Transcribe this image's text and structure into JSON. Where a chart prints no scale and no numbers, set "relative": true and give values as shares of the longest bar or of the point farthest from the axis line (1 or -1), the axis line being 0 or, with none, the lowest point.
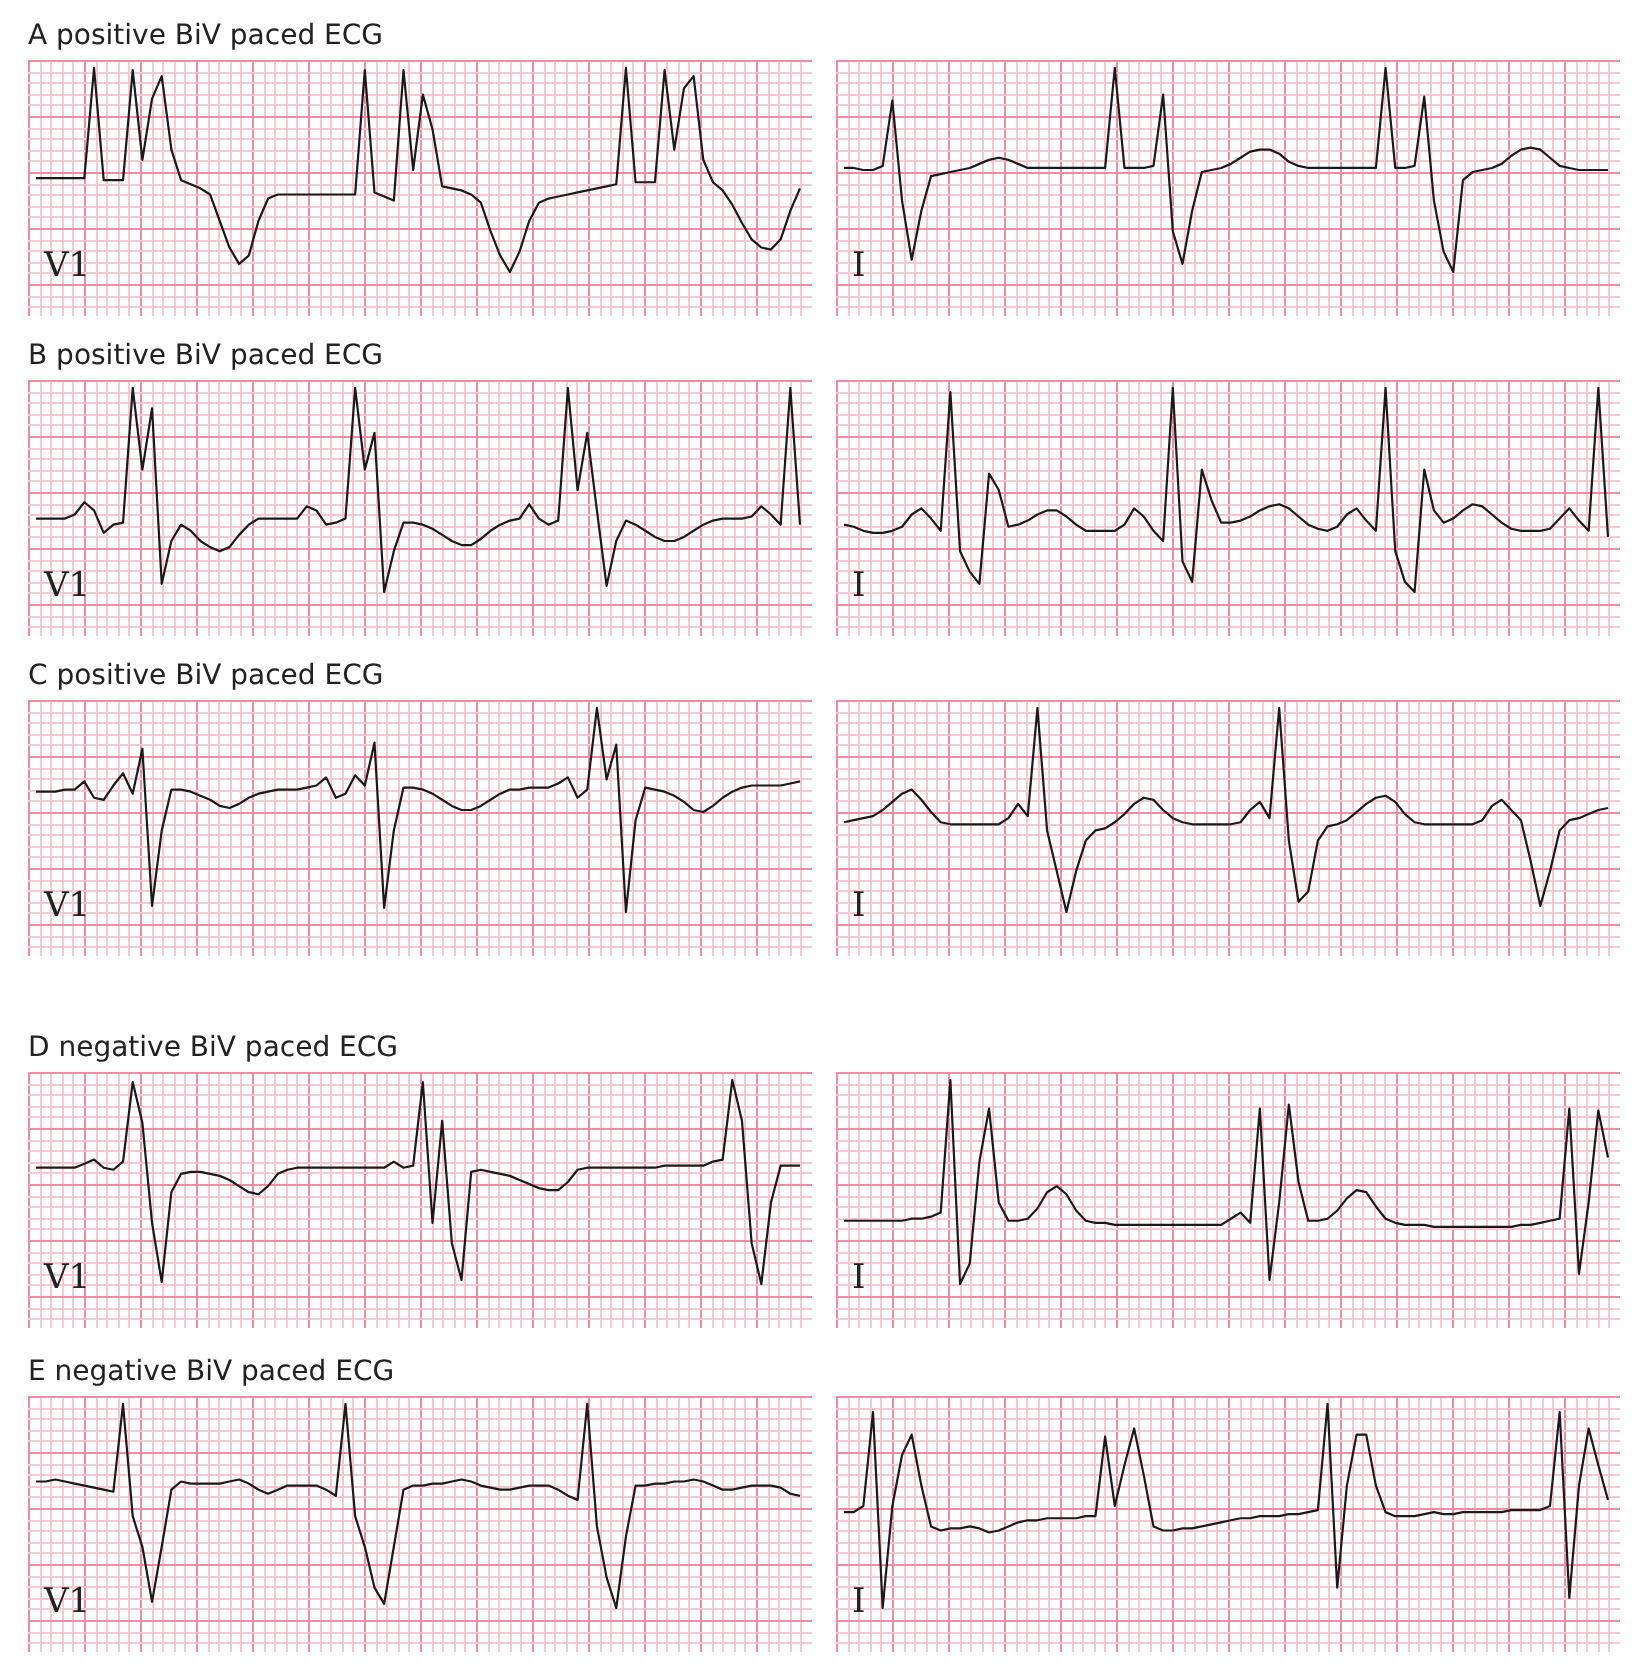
{
  "chart_data": [
    {
      "type": "line",
      "title": "A positive BiV paced ECG",
      "relative": true,
      "grid": true,
      "tick_labels": false,
      "annotations": [
        "V1"
      ],
      "categories": [
        null,
        null,
        null,
        null,
        null,
        null,
        null,
        null,
        null,
        null,
        null,
        null,
        null,
        null,
        null,
        null,
        null,
        null,
        null,
        null,
        null,
        null,
        null,
        null,
        null,
        null,
        null,
        null,
        null,
        null,
        null,
        null,
        null,
        null,
        null,
        null,
        null,
        null,
        null,
        null,
        null,
        null,
        null,
        null,
        null,
        null,
        null,
        null,
        null,
        null,
        null,
        null,
        null,
        null,
        null,
        null,
        null,
        null,
        null,
        null,
        null,
        null,
        null,
        null,
        null,
        null,
        null,
        null,
        null,
        null,
        null,
        null,
        null,
        null,
        null,
        null,
        null,
        null,
        null,
        null
      ],
      "series": [
        {
          "color": "#1a1a1a",
          "values": [
            0.46,
            0.46,
            0.46,
            0.46,
            0.46,
            0.46,
            1,
            0.45,
            0.45,
            0.45,
            0.99,
            0.55,
            0.85,
            0.96,
            0.6,
            0.45,
            0.43,
            0.41,
            0.38,
            0.25,
            0.12,
            0.04,
            0.08,
            0.25,
            0.36,
            0.38,
            0.38,
            0.38,
            0.38,
            0.38,
            0.38,
            0.38,
            0.38,
            0.38,
            0.99,
            0.39,
            0.37,
            0.35,
            0.99,
            0.5,
            0.87,
            0.7,
            0.42,
            0.41,
            0.4,
            0.38,
            0.34,
            0.2,
            0.08,
            0,
            0.1,
            0.25,
            0.34,
            0.36,
            0.37,
            0.38,
            0.39,
            0.4,
            0.41,
            0.42,
            0.43,
            1,
            0.44,
            0.44,
            0.44,
            0.99,
            0.6,
            0.9,
            0.96,
            0.55,
            0.44,
            0.4,
            0.33,
            0.24,
            0.16,
            0.12,
            0.11,
            0.16,
            0.3,
            0.41
          ]
        }
      ]
    },
    {
      "type": "line",
      "relative": true,
      "grid": true,
      "tick_labels": false,
      "annotations": [
        "I"
      ],
      "categories": [
        null,
        null,
        null,
        null,
        null,
        null,
        null,
        null,
        null,
        null,
        null,
        null,
        null,
        null,
        null,
        null,
        null,
        null,
        null,
        null,
        null,
        null,
        null,
        null,
        null,
        null,
        null,
        null,
        null,
        null,
        null,
        null,
        null,
        null,
        null,
        null,
        null,
        null,
        null,
        null,
        null,
        null,
        null,
        null,
        null,
        null,
        null,
        null,
        null,
        null,
        null,
        null,
        null,
        null,
        null,
        null,
        null,
        null,
        null,
        null,
        null,
        null,
        null,
        null,
        null,
        null,
        null,
        null,
        null,
        null,
        null,
        null,
        null,
        null,
        null,
        null,
        null,
        null,
        null,
        null
      ],
      "series": [
        {
          "color": "#1a1a1a",
          "values": [
            0.51,
            0.51,
            0.5,
            0.5,
            0.52,
            0.84,
            0.35,
            0.06,
            0.3,
            0.47,
            0.48,
            0.49,
            0.5,
            0.51,
            0.53,
            0.55,
            0.56,
            0.55,
            0.53,
            0.51,
            0.51,
            0.51,
            0.51,
            0.51,
            0.51,
            0.51,
            0.51,
            0.51,
            1,
            0.51,
            0.51,
            0.51,
            0.52,
            0.87,
            0.2,
            0.04,
            0.3,
            0.49,
            0.5,
            0.51,
            0.53,
            0.56,
            0.59,
            0.6,
            0.6,
            0.58,
            0.54,
            0.52,
            0.51,
            0.51,
            0.51,
            0.51,
            0.51,
            0.51,
            0.51,
            0.51,
            1,
            0.51,
            0.51,
            0.52,
            0.86,
            0.35,
            0.1,
            0,
            0.45,
            0.49,
            0.5,
            0.51,
            0.53,
            0.57,
            0.6,
            0.61,
            0.6,
            0.56,
            0.52,
            0.51,
            0.5,
            0.5,
            0.5,
            0.5
          ]
        }
      ]
    },
    {
      "type": "line",
      "title": "B positive BiV paced ECG",
      "relative": true,
      "grid": true,
      "tick_labels": false,
      "annotations": [
        "V1"
      ],
      "categories": [
        null,
        null,
        null,
        null,
        null,
        null,
        null,
        null,
        null,
        null,
        null,
        null,
        null,
        null,
        null,
        null,
        null,
        null,
        null,
        null,
        null,
        null,
        null,
        null,
        null,
        null,
        null,
        null,
        null,
        null,
        null,
        null,
        null,
        null,
        null,
        null,
        null,
        null,
        null,
        null,
        null,
        null,
        null,
        null,
        null,
        null,
        null,
        null,
        null,
        null,
        null,
        null,
        null,
        null,
        null,
        null,
        null,
        null,
        null,
        null,
        null,
        null,
        null,
        null,
        null,
        null,
        null,
        null,
        null,
        null,
        null,
        null,
        null,
        null,
        null,
        null,
        null,
        null,
        null,
        null
      ],
      "series": [
        {
          "color": "#1a1a1a",
          "values": [
            0.36,
            0.36,
            0.36,
            0.36,
            0.38,
            0.44,
            0.4,
            0.29,
            0.33,
            0.34,
            1,
            0.6,
            0.9,
            0.04,
            0.25,
            0.33,
            0.3,
            0.25,
            0.22,
            0.2,
            0.22,
            0.28,
            0.33,
            0.36,
            0.36,
            0.36,
            0.36,
            0.36,
            0.42,
            0.4,
            0.33,
            0.34,
            0.36,
            1,
            0.6,
            0.78,
            0,
            0.2,
            0.34,
            0.34,
            0.33,
            0.31,
            0.28,
            0.25,
            0.23,
            0.23,
            0.26,
            0.3,
            0.33,
            0.35,
            0.36,
            0.43,
            0.36,
            0.33,
            0.35,
            1,
            0.5,
            0.78,
            0.4,
            0.03,
            0.25,
            0.35,
            0.33,
            0.3,
            0.27,
            0.25,
            0.25,
            0.27,
            0.3,
            0.33,
            0.35,
            0.36,
            0.36,
            0.36,
            0.37,
            0.42,
            0.38,
            0.33,
            1,
            0.33
          ]
        }
      ]
    },
    {
      "type": "line",
      "relative": true,
      "grid": true,
      "tick_labels": false,
      "annotations": [
        "I"
      ],
      "categories": [
        null,
        null,
        null,
        null,
        null,
        null,
        null,
        null,
        null,
        null,
        null,
        null,
        null,
        null,
        null,
        null,
        null,
        null,
        null,
        null,
        null,
        null,
        null,
        null,
        null,
        null,
        null,
        null,
        null,
        null,
        null,
        null,
        null,
        null,
        null,
        null,
        null,
        null,
        null,
        null,
        null,
        null,
        null,
        null,
        null,
        null,
        null,
        null,
        null,
        null,
        null,
        null,
        null,
        null,
        null,
        null,
        null,
        null,
        null,
        null,
        null,
        null,
        null,
        null,
        null,
        null,
        null,
        null,
        null,
        null,
        null,
        null,
        null,
        null,
        null,
        null,
        null,
        null,
        null,
        null
      ],
      "series": [
        {
          "color": "#1a1a1a",
          "values": [
            0.33,
            0.32,
            0.3,
            0.29,
            0.29,
            0.3,
            0.32,
            0.38,
            0.41,
            0.36,
            0.3,
            0.98,
            0.2,
            0.1,
            0.04,
            0.58,
            0.5,
            0.32,
            0.33,
            0.35,
            0.38,
            0.4,
            0.4,
            0.37,
            0.33,
            0.3,
            0.3,
            0.3,
            0.3,
            0.33,
            0.41,
            0.37,
            0.3,
            0.25,
            1,
            0.15,
            0.05,
            0.6,
            0.45,
            0.34,
            0.34,
            0.35,
            0.37,
            0.4,
            0.42,
            0.43,
            0.41,
            0.37,
            0.33,
            0.31,
            0.3,
            0.32,
            0.38,
            0.41,
            0.35,
            0.3,
            1,
            0.2,
            0.05,
            0,
            0.6,
            0.4,
            0.34,
            0.36,
            0.4,
            0.43,
            0.42,
            0.38,
            0.34,
            0.31,
            0.3,
            0.3,
            0.3,
            0.31,
            0.36,
            0.41,
            0.35,
            0.3,
            1,
            0.27
          ]
        }
      ]
    },
    {
      "type": "line",
      "title": "C positive BiV paced ECG",
      "relative": true,
      "grid": true,
      "tick_labels": false,
      "annotations": [
        "V1"
      ],
      "categories": [
        null,
        null,
        null,
        null,
        null,
        null,
        null,
        null,
        null,
        null,
        null,
        null,
        null,
        null,
        null,
        null,
        null,
        null,
        null,
        null,
        null,
        null,
        null,
        null,
        null,
        null,
        null,
        null,
        null,
        null,
        null,
        null,
        null,
        null,
        null,
        null,
        null,
        null,
        null,
        null,
        null,
        null,
        null,
        null,
        null,
        null,
        null,
        null,
        null,
        null,
        null,
        null,
        null,
        null,
        null,
        null,
        null,
        null,
        null,
        null,
        null,
        null,
        null,
        null,
        null,
        null,
        null,
        null,
        null,
        null,
        null,
        null,
        null,
        null,
        null,
        null,
        null,
        null,
        null,
        null
      ],
      "series": [
        {
          "color": "#1a1a1a",
          "values": [
            0.59,
            0.59,
            0.59,
            0.6,
            0.6,
            0.64,
            0.56,
            0.55,
            0.62,
            0.68,
            0.58,
            0.8,
            0.03,
            0.4,
            0.6,
            0.6,
            0.59,
            0.57,
            0.55,
            0.52,
            0.51,
            0.53,
            0.56,
            0.58,
            0.59,
            0.6,
            0.6,
            0.6,
            0.61,
            0.62,
            0.66,
            0.56,
            0.58,
            0.67,
            0.62,
            0.83,
            0.02,
            0.4,
            0.61,
            0.61,
            0.6,
            0.58,
            0.55,
            0.52,
            0.5,
            0.5,
            0.52,
            0.55,
            0.58,
            0.6,
            0.6,
            0.61,
            0.61,
            0.61,
            0.63,
            0.66,
            0.56,
            0.6,
            1,
            0.65,
            0.82,
            0,
            0.45,
            0.61,
            0.6,
            0.59,
            0.57,
            0.54,
            0.5,
            0.49,
            0.52,
            0.56,
            0.59,
            0.61,
            0.62,
            0.62,
            0.62,
            0.62,
            0.63,
            0.64
          ]
        }
      ]
    },
    {
      "type": "line",
      "relative": true,
      "grid": true,
      "tick_labels": false,
      "annotations": [
        "I"
      ],
      "categories": [
        null,
        null,
        null,
        null,
        null,
        null,
        null,
        null,
        null,
        null,
        null,
        null,
        null,
        null,
        null,
        null,
        null,
        null,
        null,
        null,
        null,
        null,
        null,
        null,
        null,
        null,
        null,
        null,
        null,
        null,
        null,
        null,
        null,
        null,
        null,
        null,
        null,
        null,
        null,
        null,
        null,
        null,
        null,
        null,
        null,
        null,
        null,
        null,
        null,
        null,
        null,
        null,
        null,
        null,
        null,
        null,
        null,
        null,
        null,
        null,
        null,
        null,
        null,
        null,
        null,
        null,
        null,
        null,
        null,
        null,
        null,
        null,
        null,
        null,
        null,
        null,
        null,
        null,
        null,
        null
      ],
      "series": [
        {
          "color": "#1a1a1a",
          "values": [
            0.44,
            0.45,
            0.46,
            0.47,
            0.5,
            0.54,
            0.58,
            0.6,
            0.55,
            0.49,
            0.44,
            0.43,
            0.43,
            0.43,
            0.43,
            0.43,
            0.43,
            0.46,
            0.53,
            0.47,
            1,
            0.4,
            0.2,
            0,
            0.2,
            0.35,
            0.4,
            0.41,
            0.44,
            0.48,
            0.53,
            0.56,
            0.55,
            0.5,
            0.46,
            0.44,
            0.43,
            0.43,
            0.43,
            0.43,
            0.43,
            0.44,
            0.5,
            0.54,
            0.46,
            1,
            0.35,
            0.05,
            0.1,
            0.35,
            0.42,
            0.43,
            0.45,
            0.49,
            0.53,
            0.56,
            0.57,
            0.54,
            0.48,
            0.44,
            0.43,
            0.43,
            0.43,
            0.43,
            0.43,
            0.43,
            0.45,
            0.52,
            0.55,
            0.5,
            0.45,
            0.25,
            0.03,
            0.2,
            0.4,
            0.45,
            0.46,
            0.48,
            0.5,
            0.51
          ]
        }
      ]
    },
    {
      "type": "line",
      "title": "D negative BiV paced ECG",
      "relative": true,
      "grid": true,
      "tick_labels": false,
      "annotations": [
        "V1"
      ],
      "categories": [
        null,
        null,
        null,
        null,
        null,
        null,
        null,
        null,
        null,
        null,
        null,
        null,
        null,
        null,
        null,
        null,
        null,
        null,
        null,
        null,
        null,
        null,
        null,
        null,
        null,
        null,
        null,
        null,
        null,
        null,
        null,
        null,
        null,
        null,
        null,
        null,
        null,
        null,
        null,
        null,
        null,
        null,
        null,
        null,
        null,
        null,
        null,
        null,
        null,
        null,
        null,
        null,
        null,
        null,
        null,
        null,
        null,
        null,
        null,
        null,
        null,
        null,
        null,
        null,
        null,
        null,
        null,
        null,
        null,
        null,
        null,
        null,
        null,
        null,
        null,
        null,
        null,
        null,
        null,
        null
      ],
      "series": [
        {
          "color": "#1a1a1a",
          "values": [
            0.57,
            0.57,
            0.57,
            0.57,
            0.57,
            0.59,
            0.61,
            0.57,
            0.56,
            0.6,
            0.99,
            0.79,
            0.3,
            0.01,
            0.45,
            0.54,
            0.55,
            0.55,
            0.54,
            0.53,
            0.51,
            0.48,
            0.45,
            0.44,
            0.48,
            0.54,
            0.56,
            0.57,
            0.57,
            0.57,
            0.57,
            0.57,
            0.57,
            0.57,
            0.57,
            0.57,
            0.57,
            0.6,
            0.57,
            0.58,
            0.99,
            0.3,
            0.8,
            0.2,
            0.02,
            0.55,
            0.56,
            0.55,
            0.54,
            0.53,
            0.51,
            0.49,
            0.47,
            0.46,
            0.46,
            0.5,
            0.56,
            0.57,
            0.57,
            0.57,
            0.57,
            0.57,
            0.57,
            0.57,
            0.57,
            0.58,
            0.58,
            0.58,
            0.58,
            0.58,
            0.6,
            0.61,
            1,
            0.8,
            0.2,
            0,
            0.4,
            0.58,
            0.58,
            0.58
          ]
        }
      ]
    },
    {
      "type": "line",
      "relative": true,
      "grid": true,
      "tick_labels": false,
      "annotations": [
        "I"
      ],
      "categories": [
        null,
        null,
        null,
        null,
        null,
        null,
        null,
        null,
        null,
        null,
        null,
        null,
        null,
        null,
        null,
        null,
        null,
        null,
        null,
        null,
        null,
        null,
        null,
        null,
        null,
        null,
        null,
        null,
        null,
        null,
        null,
        null,
        null,
        null,
        null,
        null,
        null,
        null,
        null,
        null,
        null,
        null,
        null,
        null,
        null,
        null,
        null,
        null,
        null,
        null,
        null,
        null,
        null,
        null,
        null,
        null,
        null,
        null,
        null,
        null,
        null,
        null,
        null,
        null,
        null,
        null,
        null,
        null,
        null,
        null,
        null,
        null,
        null,
        null,
        null,
        null,
        null,
        null,
        null,
        null
      ],
      "series": [
        {
          "color": "#1a1a1a",
          "values": [
            0.31,
            0.31,
            0.31,
            0.31,
            0.31,
            0.31,
            0.31,
            0.32,
            0.32,
            0.33,
            0.35,
            1,
            0,
            0.1,
            0.6,
            0.86,
            0.4,
            0.31,
            0.31,
            0.32,
            0.37,
            0.45,
            0.48,
            0.44,
            0.36,
            0.31,
            0.3,
            0.3,
            0.29,
            0.29,
            0.29,
            0.29,
            0.29,
            0.29,
            0.29,
            0.29,
            0.29,
            0.29,
            0.29,
            0.29,
            0.32,
            0.35,
            0.3,
            0.86,
            0.02,
            0.4,
            0.88,
            0.5,
            0.31,
            0.31,
            0.32,
            0.36,
            0.42,
            0.46,
            0.45,
            0.38,
            0.32,
            0.3,
            0.29,
            0.29,
            0.29,
            0.28,
            0.28,
            0.28,
            0.28,
            0.28,
            0.28,
            0.28,
            0.28,
            0.28,
            0.29,
            0.29,
            0.3,
            0.31,
            0.32,
            0.86,
            0.05,
            0.4,
            0.85,
            0.62
          ]
        }
      ]
    },
    {
      "type": "line",
      "title": "E negative BiV paced ECG",
      "relative": true,
      "grid": true,
      "tick_labels": false,
      "annotations": [
        "V1"
      ],
      "categories": [
        null,
        null,
        null,
        null,
        null,
        null,
        null,
        null,
        null,
        null,
        null,
        null,
        null,
        null,
        null,
        null,
        null,
        null,
        null,
        null,
        null,
        null,
        null,
        null,
        null,
        null,
        null,
        null,
        null,
        null,
        null,
        null,
        null,
        null,
        null,
        null,
        null,
        null,
        null,
        null,
        null,
        null,
        null,
        null,
        null,
        null,
        null,
        null,
        null,
        null,
        null,
        null,
        null,
        null,
        null,
        null,
        null,
        null,
        null,
        null,
        null,
        null,
        null,
        null,
        null,
        null,
        null,
        null,
        null,
        null,
        null,
        null,
        null,
        null,
        null,
        null,
        null,
        null,
        null,
        null
      ],
      "series": [
        {
          "color": "#1a1a1a",
          "values": [
            0.62,
            0.62,
            0.63,
            0.62,
            0.61,
            0.6,
            0.59,
            0.58,
            0.57,
            1,
            0.45,
            0.3,
            0.03,
            0.3,
            0.58,
            0.62,
            0.61,
            0.61,
            0.61,
            0.61,
            0.62,
            0.63,
            0.61,
            0.58,
            0.56,
            0.58,
            0.6,
            0.6,
            0.6,
            0.6,
            0.58,
            0.55,
            1,
            0.45,
            0.3,
            0.1,
            0.02,
            0.3,
            0.58,
            0.6,
            0.6,
            0.61,
            0.61,
            0.62,
            0.63,
            0.62,
            0.6,
            0.59,
            0.58,
            0.58,
            0.59,
            0.6,
            0.6,
            0.6,
            0.58,
            0.55,
            0.53,
            1,
            0.4,
            0.15,
            0,
            0.35,
            0.6,
            0.6,
            0.61,
            0.61,
            0.62,
            0.62,
            0.63,
            0.62,
            0.6,
            0.58,
            0.58,
            0.59,
            0.6,
            0.6,
            0.6,
            0.59,
            0.56,
            0.55
          ]
        }
      ]
    },
    {
      "type": "line",
      "relative": true,
      "grid": true,
      "tick_labels": false,
      "annotations": [
        "I"
      ],
      "categories": [
        null,
        null,
        null,
        null,
        null,
        null,
        null,
        null,
        null,
        null,
        null,
        null,
        null,
        null,
        null,
        null,
        null,
        null,
        null,
        null,
        null,
        null,
        null,
        null,
        null,
        null,
        null,
        null,
        null,
        null,
        null,
        null,
        null,
        null,
        null,
        null,
        null,
        null,
        null,
        null,
        null,
        null,
        null,
        null,
        null,
        null,
        null,
        null,
        null,
        null,
        null,
        null,
        null,
        null,
        null,
        null,
        null,
        null,
        null,
        null,
        null,
        null,
        null,
        null,
        null,
        null,
        null,
        null,
        null,
        null,
        null,
        null,
        null,
        null,
        null,
        null,
        null,
        null,
        null,
        null
      ],
      "series": [
        {
          "color": "#1a1a1a",
          "values": [
            0.47,
            0.47,
            0.5,
            0.96,
            0,
            0.5,
            0.75,
            0.85,
            0.6,
            0.4,
            0.38,
            0.39,
            0.39,
            0.4,
            0.39,
            0.37,
            0.38,
            0.4,
            0.42,
            0.43,
            0.43,
            0.44,
            0.44,
            0.44,
            0.44,
            0.45,
            0.45,
            0.84,
            0.5,
            0.7,
            0.88,
            0.65,
            0.4,
            0.38,
            0.38,
            0.39,
            0.39,
            0.4,
            0.41,
            0.42,
            0.43,
            0.44,
            0.44,
            0.45,
            0.45,
            0.45,
            0.46,
            0.46,
            0.47,
            0.48,
            1,
            0.1,
            0.6,
            0.85,
            0.85,
            0.6,
            0.47,
            0.45,
            0.45,
            0.45,
            0.46,
            0.47,
            0.46,
            0.46,
            0.47,
            0.47,
            0.47,
            0.47,
            0.47,
            0.48,
            0.48,
            0.48,
            0.48,
            0.5,
            0.96,
            0.05,
            0.6,
            0.88,
            0.7,
            0.53
          ]
        }
      ]
    }
  ]
}
